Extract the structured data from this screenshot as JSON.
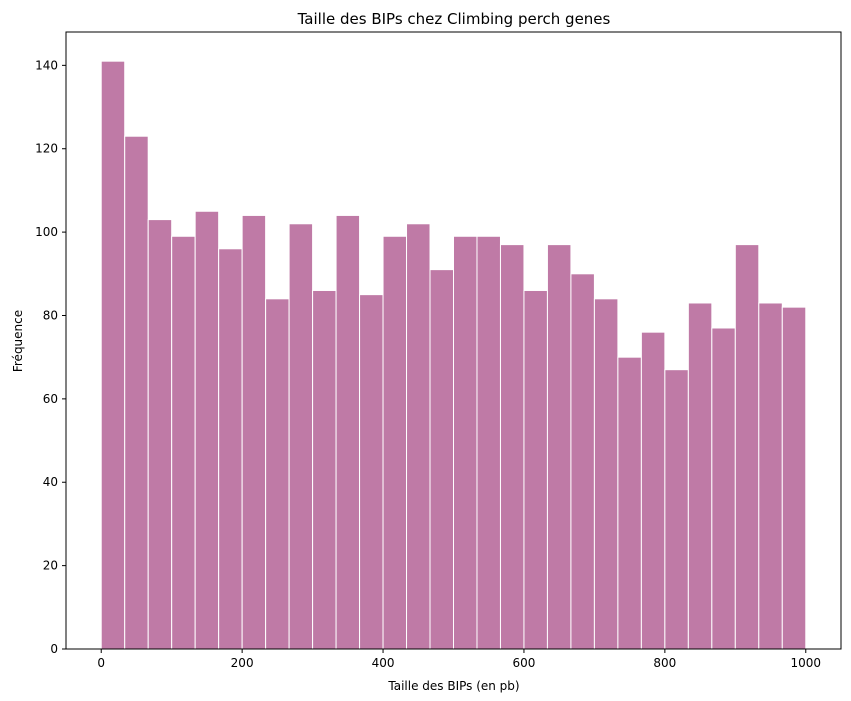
{
  "chart_data": {
    "type": "bar",
    "title": "Taille des BIPs chez Climbing perch genes",
    "xlabel": "Taille des BIPs (en pb)",
    "ylabel": "Fréquence",
    "xlim": [
      -50,
      1050
    ],
    "ylim": [
      0,
      148
    ],
    "x_ticks": [
      0,
      200,
      400,
      600,
      800,
      1000
    ],
    "y_ticks": [
      0,
      20,
      40,
      60,
      80,
      100,
      120,
      140
    ],
    "bin_start": 0,
    "bin_end": 1000,
    "bin_width": 33.33,
    "values": [
      141,
      123,
      103,
      99,
      105,
      96,
      104,
      84,
      102,
      86,
      104,
      85,
      99,
      102,
      91,
      99,
      99,
      97,
      86,
      97,
      90,
      84,
      70,
      76,
      67,
      83,
      77,
      97,
      83,
      82
    ],
    "bar_color": "#bf7aa6",
    "edge_color": "#ffffff",
    "grid": false,
    "legend": "none"
  }
}
